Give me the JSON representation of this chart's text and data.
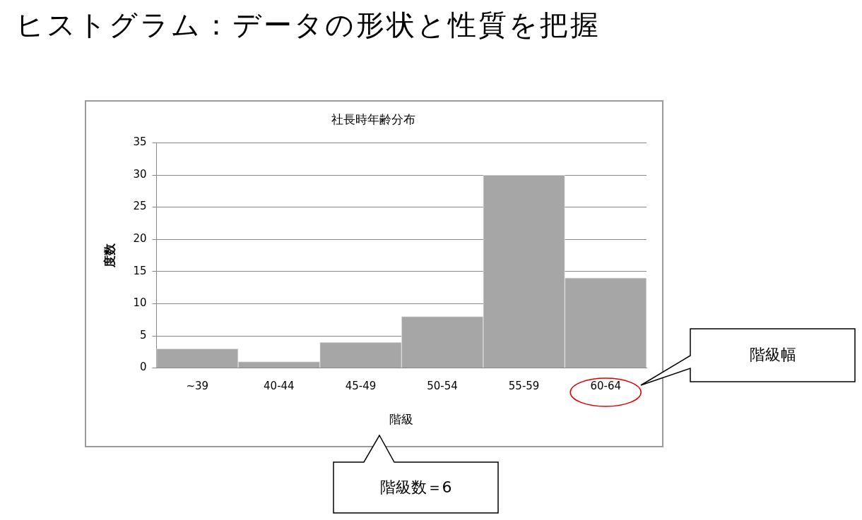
{
  "chart_data": {
    "type": "bar",
    "title": "ヒストグラム：データの形状と性質を把握",
    "subtitle": "社長時年齢分布",
    "xlabel": "階級",
    "ylabel": "度数",
    "categories": [
      "~39",
      "40-44",
      "45-49",
      "50-54",
      "55-59",
      "60-64"
    ],
    "values": [
      3,
      1,
      4,
      8,
      30,
      14
    ],
    "color": "#a6a6a6",
    "ylim": [
      0,
      35
    ],
    "yticks": [
      0,
      5,
      10,
      15,
      20,
      25,
      30,
      35
    ],
    "grid": "y",
    "legend": false,
    "annotations": [
      "階級幅",
      "階級数＝6"
    ]
  }
}
